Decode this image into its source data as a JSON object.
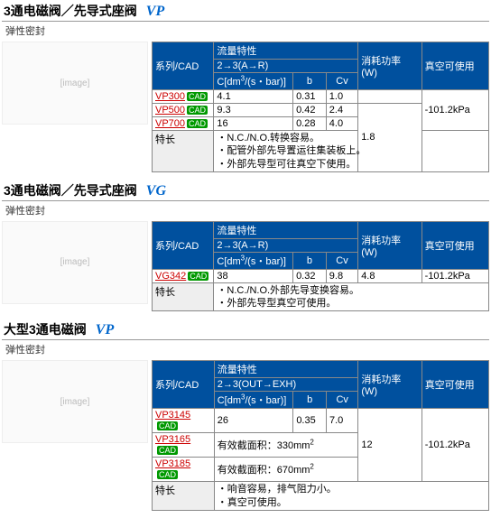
{
  "sections": [
    {
      "title": "3通电磁阀／先导式座阀",
      "code": "VP",
      "subtitle": "弹性密封",
      "headers": {
        "series": "系列/CAD",
        "flow": "流量特性",
        "flowSub": "2→3(A→R)",
        "c": "C[dm",
        "cExp": "3",
        "cUnit": "/(s・bar)]",
        "b": "b",
        "cv": "Cv",
        "power": "消耗功率 (W)",
        "vac": "真空可使用"
      },
      "colw": {
        "series": 68,
        "c": 88,
        "b": 32,
        "cv": 32,
        "power": 76,
        "vac": 72
      },
      "rows": [
        {
          "s": "VP300",
          "c": "4.1",
          "b": "0.31",
          "cv": "1.0",
          "p": "",
          "v": ""
        },
        {
          "s": "VP500",
          "c": "9.3",
          "b": "0.42",
          "cv": "2.4",
          "p": "1.8",
          "v": ""
        },
        {
          "s": "VP700",
          "c": "16",
          "b": "0.28",
          "cv": "4.0",
          "p": "",
          "v": "-101.2kPa"
        }
      ],
      "pMerge": [
        [
          1,
          3
        ]
      ],
      "vMerge": [
        [
          0,
          3
        ]
      ],
      "featLabel": "特长",
      "feat": "・N.C./N.O.转换容易。\n・配管外部先导置运往集装板上。\n・外部先导型可往真空下使用。"
    },
    {
      "title": "3通电磁阀／先导式座阀",
      "code": "VG",
      "subtitle": "弹性密封",
      "headers": {
        "series": "系列/CAD",
        "flow": "流量特性",
        "flowSub": "2→3(A→R)",
        "c": "C[dm",
        "cExp": "3",
        "cUnit": "/(s・bar)]",
        "b": "b",
        "cv": "Cv",
        "power": "消耗功率 (W)",
        "vac": "真空可使用"
      },
      "colw": {
        "series": 68,
        "c": 88,
        "b": 32,
        "cv": 32,
        "power": 76,
        "vac": 72
      },
      "rows": [
        {
          "s": "VG342",
          "c": "38",
          "b": "0.32",
          "cv": "9.8",
          "p": "4.8",
          "v": "-101.2kPa"
        }
      ],
      "featLabel": "特长",
      "feat": "・N.C./N.O.外部先导变换容易。\n・外部先导型真空可使用。"
    },
    {
      "title": "大型3通电磁阀",
      "code": "VP",
      "subtitle": "弹性密封",
      "headers": {
        "series": "系列/CAD",
        "flow": "流量特性",
        "flowSub": "2→3(OUT→EXH)",
        "c": "C[dm",
        "cExp": "3",
        "cUnit": "/(s・bar)]",
        "b": "b",
        "cv": "Cv",
        "power": "消耗功率 (W)",
        "vac": "真空可使用"
      },
      "colw": {
        "series": 68,
        "c": 88,
        "b": 32,
        "cv": 32,
        "power": 76,
        "vac": 72
      },
      "rows": [
        {
          "s": "VP3145",
          "c": "26",
          "b": "0.35",
          "cv": "7.0",
          "p": "",
          "v": ""
        },
        {
          "s": "VP3165",
          "c": "有效截面积：330mm",
          "cSup": "2",
          "b": "",
          "cv": "",
          "p": "12",
          "v": "-101.2kPa",
          "cSpan": 3
        },
        {
          "s": "VP3185",
          "c": "有效截面积：670mm",
          "cSup": "2",
          "b": "",
          "cv": "",
          "p": "",
          "v": "",
          "cSpan": 3
        }
      ],
      "pMerge": [
        [
          0,
          3
        ]
      ],
      "vMerge": [
        [
          0,
          3
        ]
      ],
      "featLabel": "特长",
      "feat": "・响音容易，排气阻力小。\n・真空可使用。"
    }
  ],
  "cadLabel": "CAD",
  "styles": {
    "th_bg": "#00509e",
    "th_fg": "#ffffff",
    "link": "#cc0000",
    "rule": "#999999",
    "cad_bg": "#009900",
    "code_fg": "#0066cc"
  }
}
